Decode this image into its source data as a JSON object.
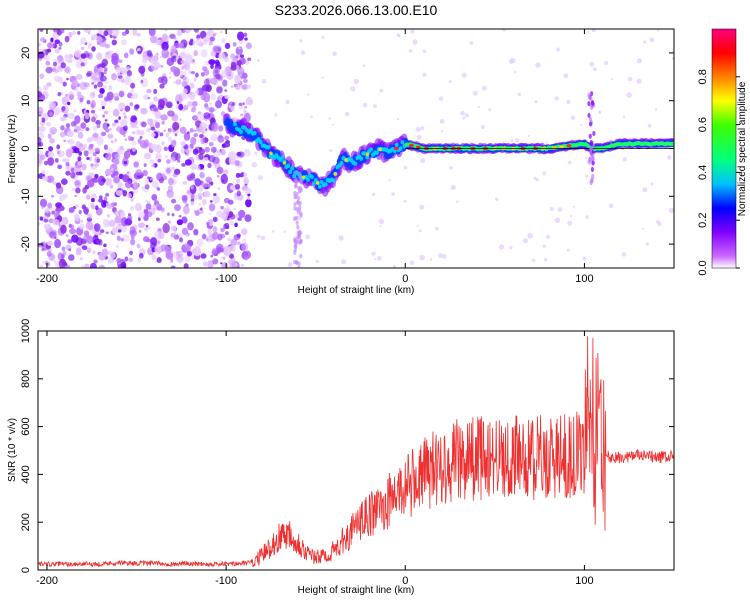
{
  "title": "S233.2026.066.13.00.E10",
  "chart_data": [
    {
      "type": "heatmap",
      "name": "spectrogram",
      "xlabel": "Height of straight line (km)",
      "ylabel": "Frequency (Hz)",
      "xlim": [
        -205,
        150
      ],
      "ylim": [
        -25,
        25
      ],
      "x_ticks": [
        -200,
        -100,
        0,
        100
      ],
      "x_tick_labels": [
        "-200",
        "-100",
        "0",
        "100"
      ],
      "y_ticks": [
        -20,
        -10,
        0,
        10,
        20
      ],
      "y_tick_labels": [
        "-20",
        "-10",
        "0",
        "10",
        "20"
      ],
      "colorbar": {
        "label": "Normalized spectral amplitude",
        "range": [
          0,
          1
        ],
        "ticks": [
          0.0,
          0.2,
          0.4,
          0.6,
          0.8
        ],
        "tick_labels": [
          "0.0",
          "0.2",
          "0.4",
          "0.6",
          "0.8"
        ],
        "colors": [
          "#ffffff",
          "#cc66ff",
          "#7f00ff",
          "#0000ff",
          "#00bfff",
          "#00ff80",
          "#40ff00",
          "#ffff00",
          "#ff8000",
          "#ff0000",
          "#ff0080"
        ]
      },
      "ridge": {
        "x": [
          -100,
          -90,
          -85,
          -80,
          -75,
          -70,
          -65,
          -60,
          -55,
          -50,
          -45,
          -40,
          -35,
          -30,
          -25,
          -20,
          -15,
          -10,
          -5,
          0,
          10,
          20,
          40,
          60,
          80,
          100,
          104,
          110,
          120,
          130,
          150
        ],
        "y": [
          5,
          4,
          3,
          1,
          -1,
          -2,
          -4,
          -6,
          -6,
          -7,
          -8,
          -6,
          -2,
          -3,
          -2,
          -1,
          0,
          -1,
          0,
          1,
          0,
          0,
          0,
          0,
          0,
          1,
          0,
          0,
          1,
          1,
          1
        ]
      }
    },
    {
      "type": "line",
      "name": "snr",
      "xlabel": "Height of straight line (km)",
      "ylabel": "SNR (10 * v/v)",
      "xlim": [
        -205,
        150
      ],
      "ylim": [
        0,
        1000
      ],
      "x_ticks": [
        -200,
        -100,
        0,
        100
      ],
      "x_tick_labels": [
        "-200",
        "-100",
        "0",
        "100"
      ],
      "y_ticks": [
        0,
        200,
        400,
        600,
        800,
        1000
      ],
      "y_tick_labels": [
        "0",
        "200",
        "400",
        "600",
        "800",
        "1000"
      ],
      "color": "#ee3030",
      "series": [
        {
          "name": "SNR",
          "x": [
            -205,
            -190,
            -180,
            -170,
            -160,
            -150,
            -140,
            -130,
            -120,
            -110,
            -100,
            -95,
            -90,
            -85,
            -80,
            -75,
            -70,
            -65,
            -60,
            -55,
            -50,
            -45,
            -40,
            -35,
            -30,
            -25,
            -20,
            -15,
            -10,
            -5,
            0,
            5,
            10,
            15,
            20,
            25,
            30,
            40,
            50,
            60,
            70,
            80,
            90,
            95,
            100,
            102,
            104,
            106,
            108,
            110,
            112,
            115,
            120,
            130,
            140,
            150
          ],
          "y": [
            25,
            25,
            25,
            25,
            30,
            28,
            28,
            25,
            28,
            25,
            25,
            25,
            28,
            35,
            60,
            100,
            140,
            160,
            120,
            70,
            50,
            60,
            80,
            120,
            160,
            200,
            230,
            250,
            280,
            320,
            350,
            370,
            400,
            420,
            440,
            450,
            460,
            470,
            470,
            470,
            470,
            470,
            475,
            480,
            490,
            800,
            500,
            350,
            900,
            200,
            480,
            470,
            470,
            480,
            470,
            475
          ]
        }
      ]
    }
  ]
}
